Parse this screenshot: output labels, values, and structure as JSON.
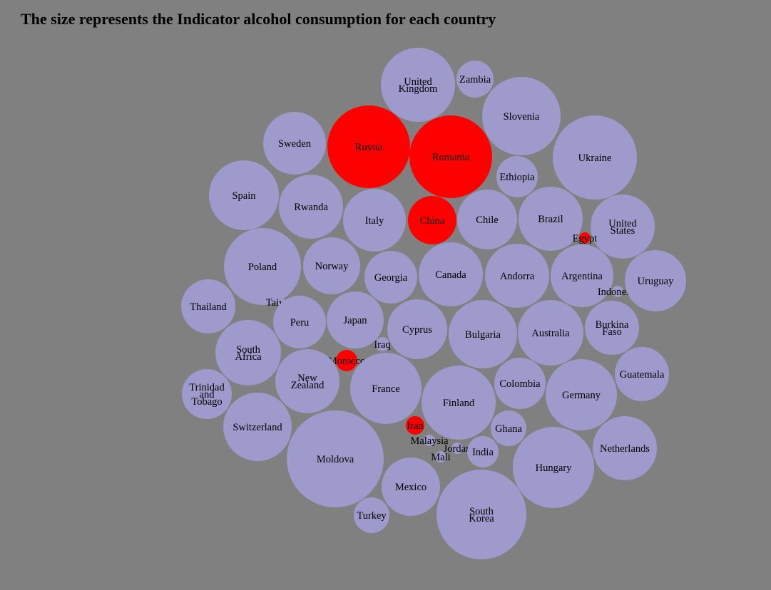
{
  "chart_data": {
    "type": "bubble",
    "title": "The size represents the Indicator alcohol consumption for each country",
    "colors": {
      "default": "#9e9acb",
      "highlighted": "#ff0000",
      "background": "#808080"
    },
    "bubbles": [
      {
        "label": "United Kingdom",
        "lines": [
          "United",
          "Kingdom"
        ],
        "relative_size": 52,
        "highlighted": false
      },
      {
        "label": "Zambia",
        "lines": [
          "Zambia"
        ],
        "relative_size": 26,
        "highlighted": false
      },
      {
        "label": "Slovenia",
        "lines": [
          "Slovenia"
        ],
        "relative_size": 55,
        "highlighted": false
      },
      {
        "label": "Sweden",
        "lines": [
          "Sweden"
        ],
        "relative_size": 44,
        "highlighted": false
      },
      {
        "label": "Russia",
        "lines": [
          "Russia"
        ],
        "relative_size": 58,
        "highlighted": true
      },
      {
        "label": "Romania",
        "lines": [
          "Romania"
        ],
        "relative_size": 58,
        "highlighted": true
      },
      {
        "label": "Ukraine",
        "lines": [
          "Ukraine"
        ],
        "relative_size": 59,
        "highlighted": false
      },
      {
        "label": "Ethiopia",
        "lines": [
          "Ethiopia"
        ],
        "relative_size": 29,
        "highlighted": false
      },
      {
        "label": "Spain",
        "lines": [
          "Spain"
        ],
        "relative_size": 49,
        "highlighted": false
      },
      {
        "label": "Rwanda",
        "lines": [
          "Rwanda"
        ],
        "relative_size": 45,
        "highlighted": false
      },
      {
        "label": "Italy",
        "lines": [
          "Italy"
        ],
        "relative_size": 44,
        "highlighted": false
      },
      {
        "label": "China",
        "lines": [
          "China"
        ],
        "relative_size": 34,
        "highlighted": true
      },
      {
        "label": "Chile",
        "lines": [
          "Chile"
        ],
        "relative_size": 42,
        "highlighted": false
      },
      {
        "label": "Brazil",
        "lines": [
          "Brazil"
        ],
        "relative_size": 45,
        "highlighted": false
      },
      {
        "label": "United States",
        "lines": [
          "United",
          "States"
        ],
        "relative_size": 45,
        "highlighted": false
      },
      {
        "label": "Egypt",
        "lines": [
          "Egypt"
        ],
        "relative_size": 8,
        "highlighted": true
      },
      {
        "label": "Poland",
        "lines": [
          "Poland"
        ],
        "relative_size": 54,
        "highlighted": false
      },
      {
        "label": "Norway",
        "lines": [
          "Norway"
        ],
        "relative_size": 40,
        "highlighted": false
      },
      {
        "label": "Georgia",
        "lines": [
          "Georgia"
        ],
        "relative_size": 37,
        "highlighted": false
      },
      {
        "label": "Canada",
        "lines": [
          "Canada"
        ],
        "relative_size": 45,
        "highlighted": false
      },
      {
        "label": "Andorra",
        "lines": [
          "Andorra"
        ],
        "relative_size": 45,
        "highlighted": false
      },
      {
        "label": "Argentina",
        "lines": [
          "Argentina"
        ],
        "relative_size": 44,
        "highlighted": false
      },
      {
        "label": "Indonesia",
        "lines": [
          "Indonesia"
        ],
        "relative_size": 8,
        "highlighted": false
      },
      {
        "label": "Uruguay",
        "lines": [
          "Uruguay"
        ],
        "relative_size": 43,
        "highlighted": false
      },
      {
        "label": "Thailand",
        "lines": [
          "Thailand"
        ],
        "relative_size": 38,
        "highlighted": false
      },
      {
        "label": "Taiwan",
        "lines": [
          "Taiwan"
        ],
        "relative_size": 6,
        "highlighted": false
      },
      {
        "label": "Peru",
        "lines": [
          "Peru"
        ],
        "relative_size": 37,
        "highlighted": false
      },
      {
        "label": "Japan",
        "lines": [
          "Japan"
        ],
        "relative_size": 40,
        "highlighted": false
      },
      {
        "label": "Cyprus",
        "lines": [
          "Cyprus"
        ],
        "relative_size": 42,
        "highlighted": false
      },
      {
        "label": "Bulgaria",
        "lines": [
          "Bulgaria"
        ],
        "relative_size": 48,
        "highlighted": false
      },
      {
        "label": "Australia",
        "lines": [
          "Australia"
        ],
        "relative_size": 46,
        "highlighted": false
      },
      {
        "label": "Burkina Faso",
        "lines": [
          "Burkina",
          "Faso"
        ],
        "relative_size": 38,
        "highlighted": false
      },
      {
        "label": "Iraq",
        "lines": [
          "Iraq"
        ],
        "relative_size": 10,
        "highlighted": false
      },
      {
        "label": "South Africa",
        "lines": [
          "South",
          "Africa"
        ],
        "relative_size": 46,
        "highlighted": false
      },
      {
        "label": "Morocco",
        "lines": [
          "Morocco"
        ],
        "relative_size": 15,
        "highlighted": true
      },
      {
        "label": "New Zealand",
        "lines": [
          "New",
          "Zealand"
        ],
        "relative_size": 45,
        "highlighted": false
      },
      {
        "label": "France",
        "lines": [
          "France"
        ],
        "relative_size": 50,
        "highlighted": false
      },
      {
        "label": "Finland",
        "lines": [
          "Finland"
        ],
        "relative_size": 52,
        "highlighted": false
      },
      {
        "label": "Colombia",
        "lines": [
          "Colombia"
        ],
        "relative_size": 36,
        "highlighted": false
      },
      {
        "label": "Germany",
        "lines": [
          "Germany"
        ],
        "relative_size": 50,
        "highlighted": false
      },
      {
        "label": "Guatemala",
        "lines": [
          "Guatemala"
        ],
        "relative_size": 38,
        "highlighted": false
      },
      {
        "label": "Trinidad and Tobago",
        "lines": [
          "Trinidad",
          "and",
          "Tobago"
        ],
        "relative_size": 35,
        "highlighted": false
      },
      {
        "label": "Switzerland",
        "lines": [
          "Switzerland"
        ],
        "relative_size": 48,
        "highlighted": false
      },
      {
        "label": "Iran",
        "lines": [
          "Iran"
        ],
        "relative_size": 13,
        "highlighted": true
      },
      {
        "label": "Malaysia",
        "lines": [
          "Malaysia"
        ],
        "relative_size": 8,
        "highlighted": false
      },
      {
        "label": "Jordan",
        "lines": [
          "Jordan"
        ],
        "relative_size": 8,
        "highlighted": false
      },
      {
        "label": "Mali",
        "lines": [
          "Mali"
        ],
        "relative_size": 8,
        "highlighted": false
      },
      {
        "label": "India",
        "lines": [
          "India"
        ],
        "relative_size": 22,
        "highlighted": false
      },
      {
        "label": "Ghana",
        "lines": [
          "Ghana"
        ],
        "relative_size": 25,
        "highlighted": false
      },
      {
        "label": "Netherlands",
        "lines": [
          "Netherlands"
        ],
        "relative_size": 45,
        "highlighted": false
      },
      {
        "label": "Moldova",
        "lines": [
          "Moldova"
        ],
        "relative_size": 68,
        "highlighted": false
      },
      {
        "label": "Hungary",
        "lines": [
          "Hungary"
        ],
        "relative_size": 57,
        "highlighted": false
      },
      {
        "label": "Mexico",
        "lines": [
          "Mexico"
        ],
        "relative_size": 41,
        "highlighted": false
      },
      {
        "label": "South Korea",
        "lines": [
          "South",
          "Korea"
        ],
        "relative_size": 63,
        "highlighted": false
      },
      {
        "label": "Turkey",
        "lines": [
          "Turkey"
        ],
        "relative_size": 25,
        "highlighted": false
      }
    ]
  }
}
